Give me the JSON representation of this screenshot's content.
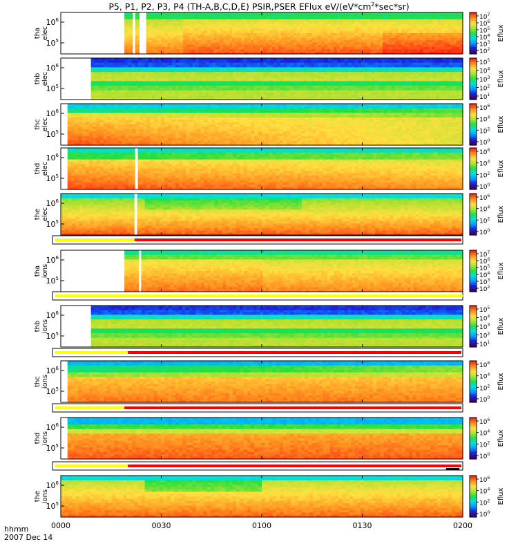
{
  "chart_data": {
    "type": "heatmap",
    "title": {
      "main": "P5, P1, P2, P3, P4 (TH-A,B,C,D,E) PSIR,PSER EFlux eV/(eV*cm",
      "sup": "2",
      "tail": "*sec*sr)"
    },
    "x_axis": {
      "range_minutes": [
        0,
        120
      ],
      "ticks": [
        {
          "value": 0,
          "label": "0000"
        },
        {
          "value": 30,
          "label": "0030"
        },
        {
          "value": 60,
          "label": "0100"
        },
        {
          "value": 90,
          "label": "0130"
        },
        {
          "value": 120,
          "label": "0200"
        }
      ],
      "label_line1": "hhmm",
      "label_line2": "2007 Dec 14"
    },
    "colorbar_label": "Eflux",
    "panels": [
      {
        "probe": "tha",
        "species": "elec",
        "yticks": [
          {
            "base": "10",
            "exp": "6"
          },
          {
            "base": "10",
            "exp": "5"
          }
        ],
        "cbar_ticks": [
          "7",
          "6",
          "5",
          "4",
          "3",
          "2"
        ],
        "data_start": 19,
        "gaps": [
          [
            21.5,
            22.2
          ],
          [
            23.5,
            25.5
          ]
        ],
        "profile": "tha_e"
      },
      {
        "probe": "thb",
        "species": "elec",
        "yticks": [
          {
            "base": "10",
            "exp": "6"
          },
          {
            "base": "10",
            "exp": "5"
          }
        ],
        "cbar_ticks": [
          "5",
          "4",
          "3",
          "2",
          "1"
        ],
        "data_start": 9,
        "gaps": [],
        "profile": "thb"
      },
      {
        "probe": "thc",
        "species": "elec",
        "yticks": [
          {
            "base": "10",
            "exp": "6"
          },
          {
            "base": "10",
            "exp": "5"
          }
        ],
        "cbar_ticks": [
          "6",
          "4",
          "2",
          "0"
        ],
        "data_start": 2,
        "gaps": [],
        "profile": "thc_e"
      },
      {
        "probe": "thd",
        "species": "elec",
        "yticks": [
          {
            "base": "10",
            "exp": "6"
          },
          {
            "base": "10",
            "exp": "5"
          }
        ],
        "cbar_ticks": [
          "6",
          "4",
          "2",
          "0"
        ],
        "data_start": 2,
        "gaps": [
          [
            22.2,
            23.0
          ]
        ],
        "profile": "thd_e"
      },
      {
        "probe": "the",
        "species": "elec",
        "yticks": [
          {
            "base": "10",
            "exp": "6"
          },
          {
            "base": "10",
            "exp": "5"
          }
        ],
        "cbar_ticks": [
          "6",
          "4",
          "2",
          "0"
        ],
        "data_start": 0,
        "gaps": [
          [
            22.0,
            22.8
          ]
        ],
        "profile": "the_e"
      },
      {
        "probe": "tha",
        "species": "ions",
        "yticks": [
          {
            "base": "10",
            "exp": "6"
          },
          {
            "base": "10",
            "exp": "5"
          }
        ],
        "cbar_ticks": [
          "7",
          "6",
          "5",
          "4",
          "3",
          "2"
        ],
        "data_start": 19,
        "gaps": [
          [
            23.3,
            24.0
          ]
        ],
        "profile": "tha_i"
      },
      {
        "probe": "thb",
        "species": "ions",
        "yticks": [
          {
            "base": "10",
            "exp": "6"
          },
          {
            "base": "10",
            "exp": "5"
          }
        ],
        "cbar_ticks": [
          "5",
          "4",
          "3",
          "2",
          "1"
        ],
        "data_start": 9,
        "gaps": [],
        "profile": "thb"
      },
      {
        "probe": "thc",
        "species": "ions",
        "yticks": [
          {
            "base": "10",
            "exp": "6"
          },
          {
            "base": "10",
            "exp": "5"
          }
        ],
        "cbar_ticks": [
          "6",
          "4",
          "2",
          "0"
        ],
        "data_start": 2,
        "gaps": [],
        "profile": "thc_i"
      },
      {
        "probe": "thd",
        "species": "ions",
        "yticks": [
          {
            "base": "10",
            "exp": "6"
          },
          {
            "base": "10",
            "exp": "5"
          }
        ],
        "cbar_ticks": [
          "6",
          "4",
          "2",
          "0"
        ],
        "data_start": 2,
        "gaps": [],
        "profile": "thd_i"
      },
      {
        "probe": "the",
        "species": "ions",
        "yticks": [
          {
            "base": "10",
            "exp": "6"
          },
          {
            "base": "10",
            "exp": "5"
          }
        ],
        "cbar_ticks": [
          "6",
          "4",
          "2",
          "0"
        ],
        "data_start": 0,
        "gaps": [],
        "profile": "the_i"
      }
    ],
    "mode_bars": [
      {
        "after_panel": 4,
        "yellow_until": 22,
        "red_from": 22
      },
      {
        "after_panel": 5,
        "yellow_until": 120,
        "red_from": 120
      },
      {
        "after_panel": 6,
        "yellow_until": 20,
        "red_from": 20
      },
      {
        "after_panel": 7,
        "yellow_until": 19,
        "red_from": 19
      },
      {
        "after_panel": 8,
        "yellow_until": 20,
        "red_from": 20,
        "black_segment": [
          115,
          119
        ]
      }
    ],
    "colors": {
      "colormap": [
        "#3a0060",
        "#1a20e0",
        "#00a0ff",
        "#00e0e0",
        "#20e040",
        "#b0e030",
        "#ffe040",
        "#ff9020",
        "#ff2010"
      ],
      "mode_yellow": "#ffff00",
      "mode_red": "#ff0000"
    }
  }
}
